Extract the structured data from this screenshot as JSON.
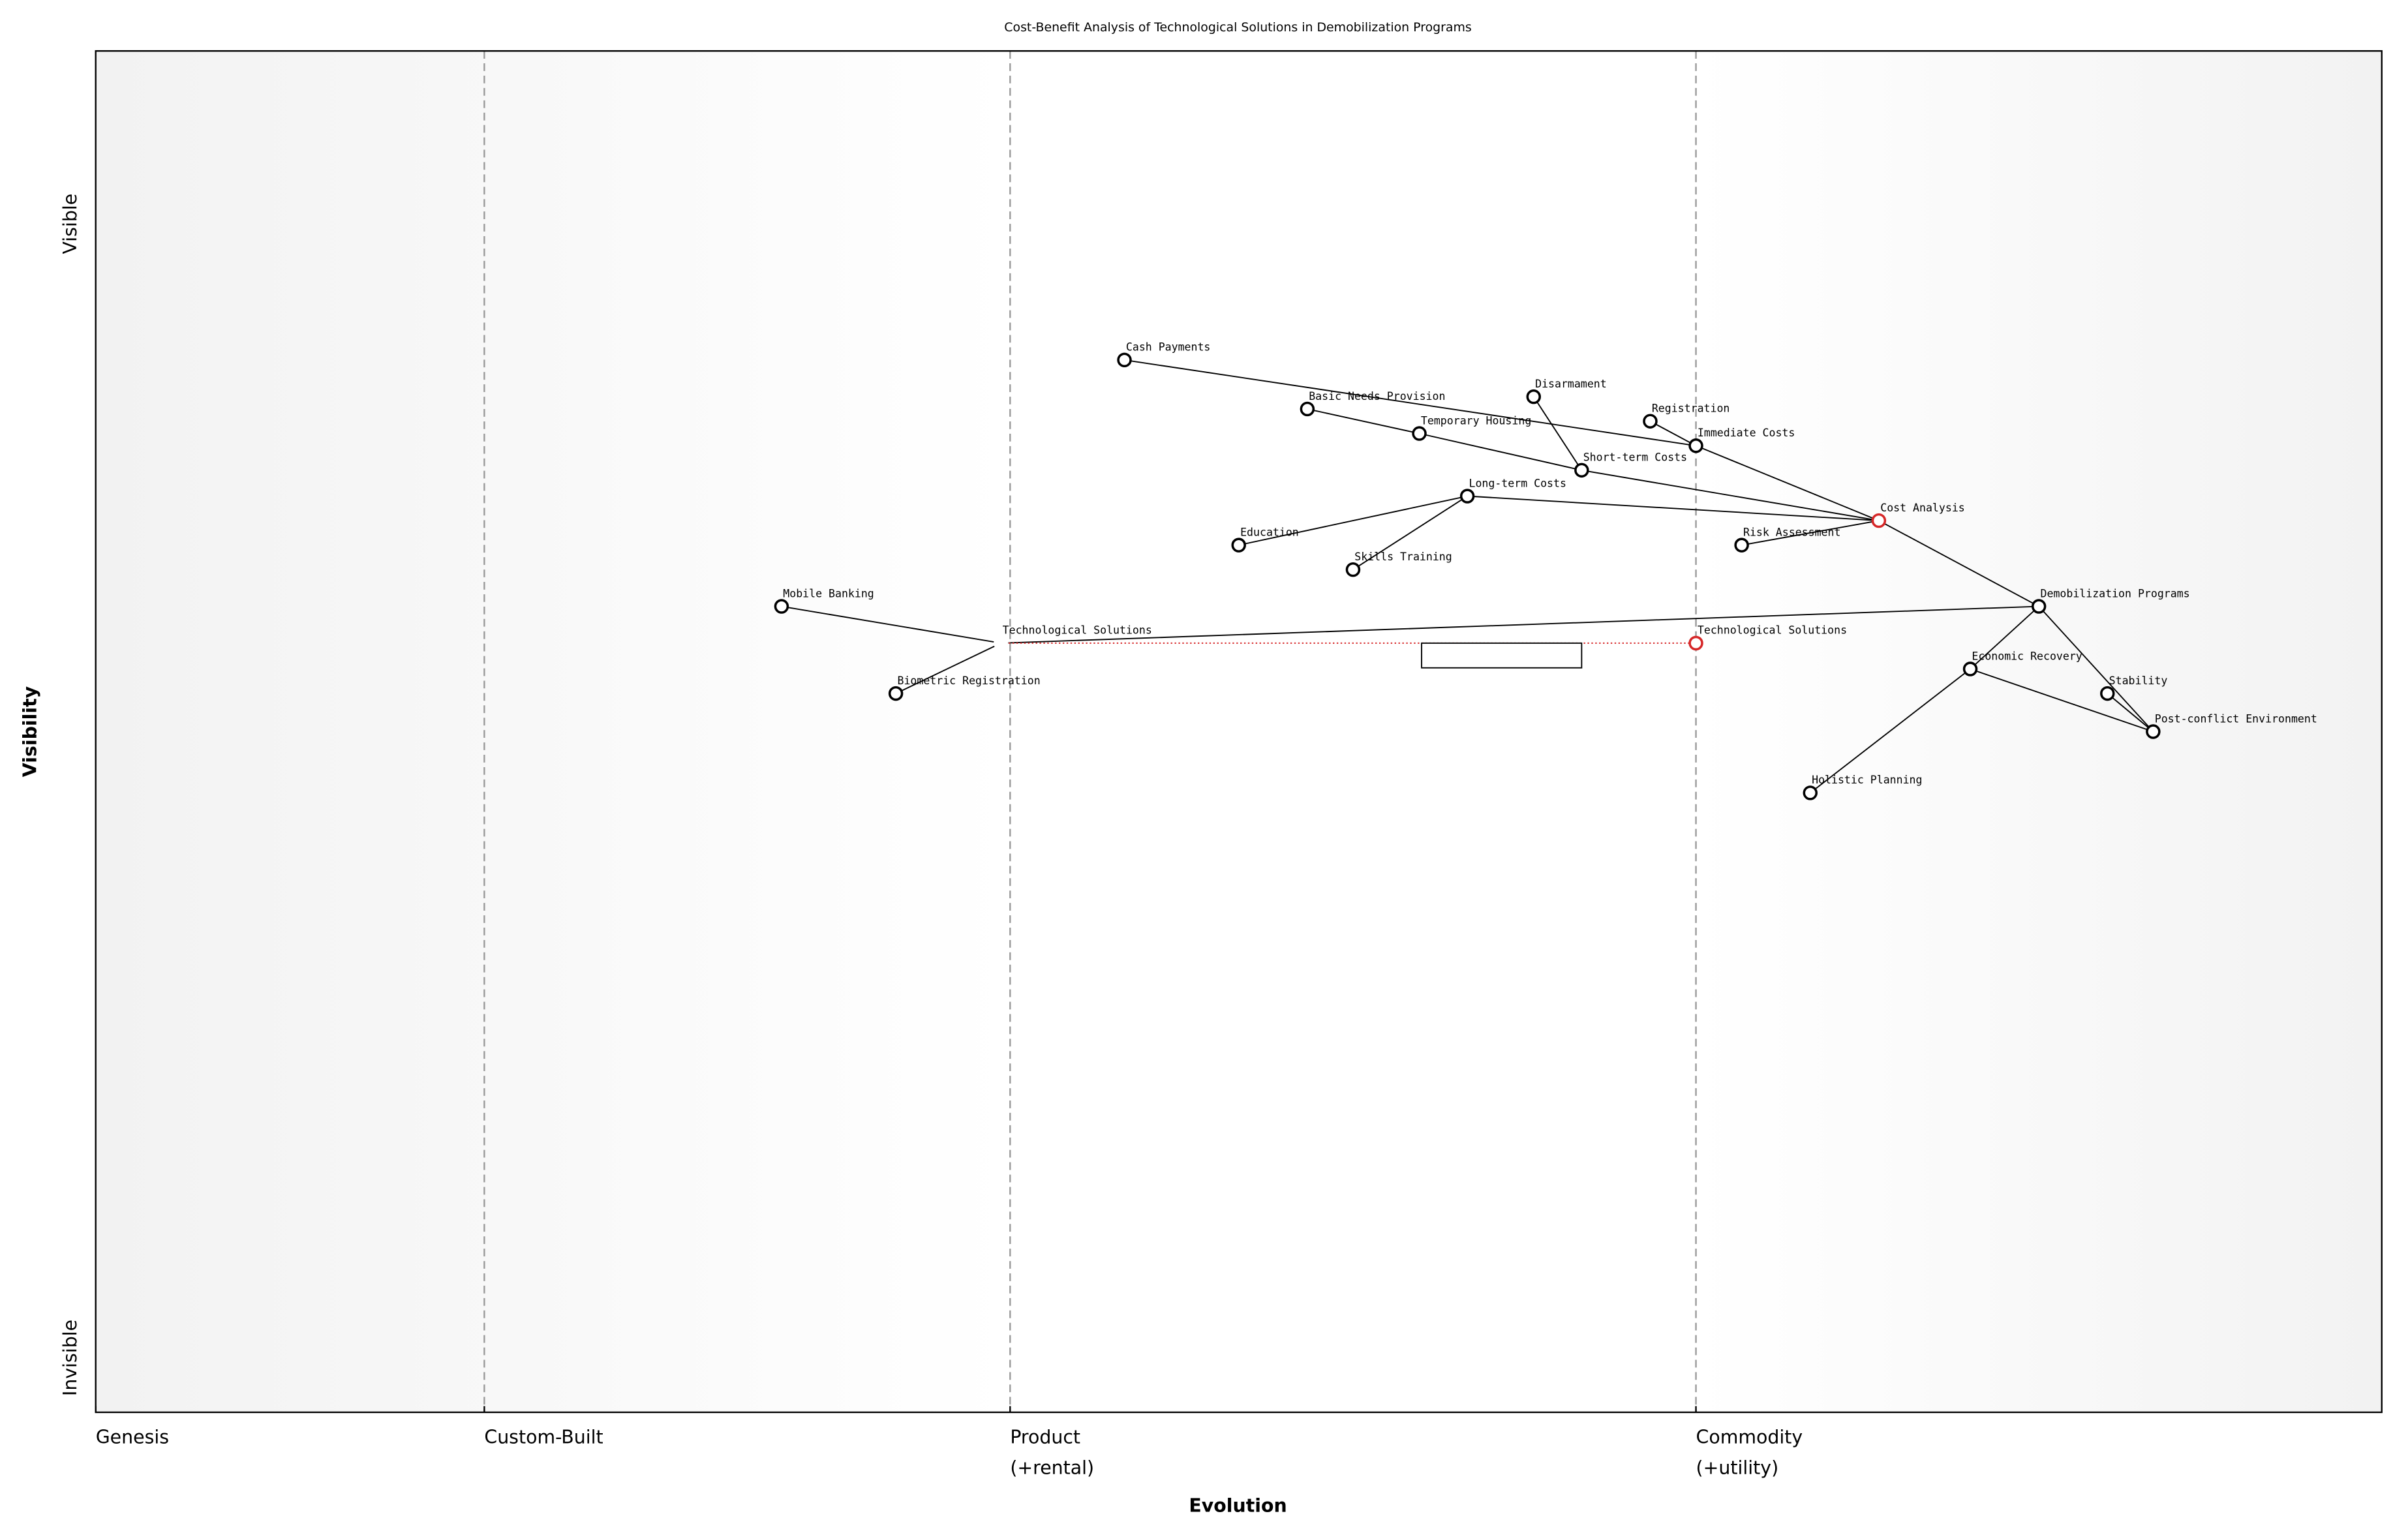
{
  "chart_data": {
    "type": "wardley",
    "title": "Cost-Benefit Analysis of Technological Solutions in Demobilization Programs",
    "x_label": "Evolution",
    "y_label": "Visibility",
    "xlim": [
      0,
      1
    ],
    "ylim": [
      0,
      1
    ],
    "xticks": [
      {
        "value": 0,
        "label": "Genesis"
      },
      {
        "value": 0.17,
        "label": "Custom-Built"
      },
      {
        "value": 0.4,
        "label": "Product\n(+rental)"
      },
      {
        "value": 0.7,
        "label": "Commodity\n(+utility)"
      }
    ],
    "yticks": [
      {
        "value": 0.04,
        "label": "Invisible"
      },
      {
        "value": 0.873,
        "label": "Visible"
      }
    ],
    "nodes": [
      {
        "name": "Cash Payments",
        "x": 0.45,
        "y": 0.773,
        "color": "#000000"
      },
      {
        "name": "Basic Needs Provision",
        "x": 0.53,
        "y": 0.737,
        "color": "#000000"
      },
      {
        "name": "Disarmament",
        "x": 0.629,
        "y": 0.746,
        "color": "#000000"
      },
      {
        "name": "Registration",
        "x": 0.68,
        "y": 0.728,
        "color": "#000000"
      },
      {
        "name": "Temporary Housing",
        "x": 0.579,
        "y": 0.719,
        "color": "#000000"
      },
      {
        "name": "Immediate Costs",
        "x": 0.7,
        "y": 0.71,
        "color": "#000000"
      },
      {
        "name": "Short-term Costs",
        "x": 0.65,
        "y": 0.692,
        "color": "#000000"
      },
      {
        "name": "Long-term Costs",
        "x": 0.6,
        "y": 0.673,
        "color": "#000000"
      },
      {
        "name": "Cost Analysis",
        "x": 0.78,
        "y": 0.655,
        "color": "#d62728"
      },
      {
        "name": "Education",
        "x": 0.5,
        "y": 0.637,
        "color": "#000000"
      },
      {
        "name": "Risk Assessment",
        "x": 0.72,
        "y": 0.637,
        "color": "#000000"
      },
      {
        "name": "Skills Training",
        "x": 0.55,
        "y": 0.619,
        "color": "#000000"
      },
      {
        "name": "Mobile Banking",
        "x": 0.3,
        "y": 0.592,
        "color": "#000000"
      },
      {
        "name": "Demobilization Programs",
        "x": 0.85,
        "y": 0.592,
        "color": "#000000"
      },
      {
        "name": "Technological Solutions",
        "x": 0.396,
        "y": 0.565,
        "color": "#ffffff"
      },
      {
        "name": "Biometric Registration",
        "x": 0.35,
        "y": 0.528,
        "color": "#000000"
      },
      {
        "name": "Economic Recovery",
        "x": 0.82,
        "y": 0.546,
        "color": "#000000"
      },
      {
        "name": "Stability",
        "x": 0.88,
        "y": 0.528,
        "color": "#000000"
      },
      {
        "name": "Post-conflict Environment",
        "x": 0.9,
        "y": 0.5,
        "color": "#000000"
      },
      {
        "name": "Holistic Planning",
        "x": 0.75,
        "y": 0.455,
        "color": "#000000"
      }
    ],
    "links": [
      [
        "Cash Payments",
        "Immediate Costs"
      ],
      [
        "Registration",
        "Immediate Costs"
      ],
      [
        "Immediate Costs",
        "Cost Analysis"
      ],
      [
        "Disarmament",
        "Short-term Costs"
      ],
      [
        "Basic Needs Provision",
        "Temporary Housing"
      ],
      [
        "Temporary Housing",
        "Short-term Costs"
      ],
      [
        "Short-term Costs",
        "Cost Analysis"
      ],
      [
        "Education",
        "Long-term Costs"
      ],
      [
        "Skills Training",
        "Long-term Costs"
      ],
      [
        "Long-term Costs",
        "Cost Analysis"
      ],
      [
        "Risk Assessment",
        "Cost Analysis"
      ],
      [
        "Cost Analysis",
        "Demobilization Programs"
      ],
      [
        "Technological Solutions",
        "Demobilization Programs"
      ],
      [
        "Mobile Banking",
        "Technological Solutions"
      ],
      [
        "Biometric Registration",
        "Technological Solutions"
      ],
      [
        "Demobilization Programs",
        "Economic Recovery"
      ],
      [
        "Demobilization Programs",
        "Post-conflict Environment"
      ],
      [
        "Economic Recovery",
        "Holistic Planning"
      ],
      [
        "Economic Recovery",
        "Post-conflict Environment"
      ],
      [
        "Stability",
        "Post-conflict Environment"
      ]
    ],
    "evolve": [
      {
        "name": "Technological Solutions",
        "from": 0.396,
        "x": 0.7,
        "y": 0.565,
        "color": "#d62728"
      }
    ],
    "pipeline": {
      "x": [
        0.58,
        0.65
      ],
      "y": 0.565
    }
  }
}
